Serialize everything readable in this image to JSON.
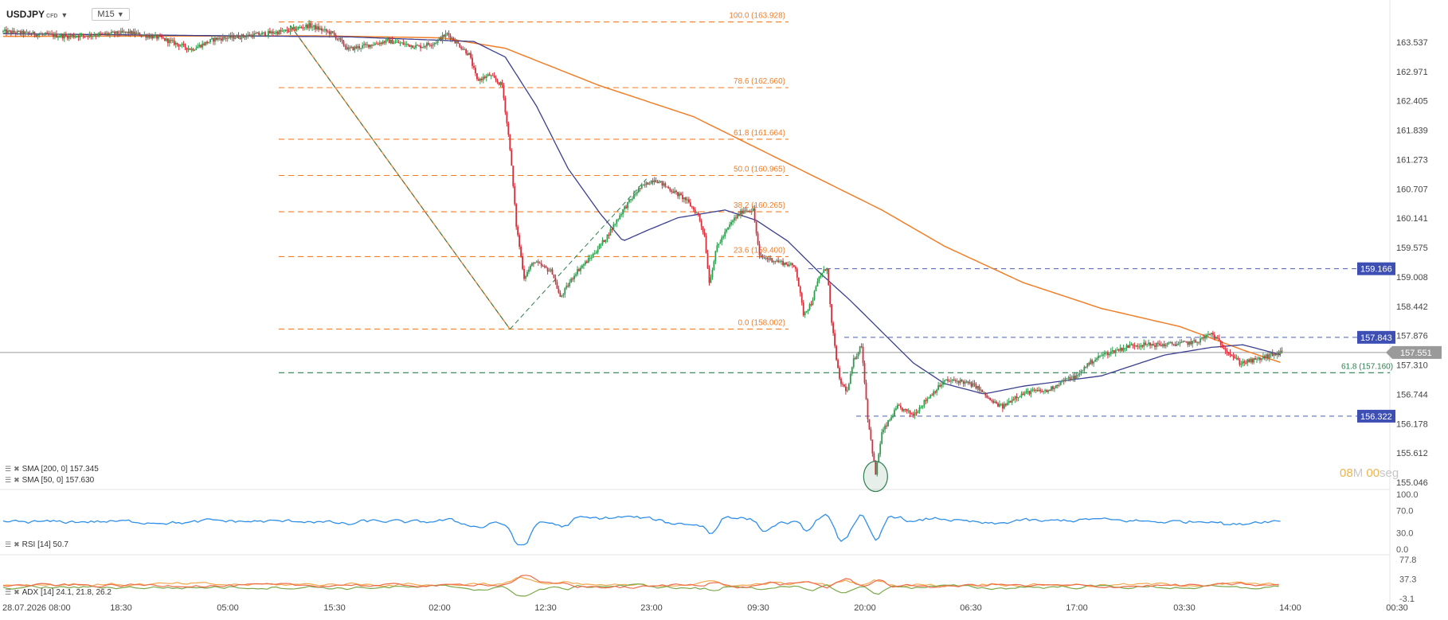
{
  "header": {
    "symbol": "USDJPY",
    "tag": "CFD",
    "timeframe": "M15"
  },
  "indicators": {
    "sma200": "SMA [200, 0] 157.345",
    "sma50": "SMA [50, 0] 157.630",
    "rsi": "RSI [14] 50.7",
    "adx": "ADX [14] 24.1, 21.8, 26.2"
  },
  "timer": {
    "minutes": "08",
    "m_unit": "M",
    "seconds": "00",
    "s_unit": "seg"
  },
  "colors": {
    "bull": "#2e9b4e",
    "bear": "#d62d3a",
    "sma200": "#f07f2a",
    "sma50": "#3b3f8f",
    "fib": "#f07f2a",
    "support": "#4b5fb3",
    "fib2": "#2e7d4f",
    "rsi": "#2f8fe8",
    "adx": "#f3a94e",
    "di_plus": "#7aa84a",
    "di_minus": "#ef6b4b",
    "price_tag": "#9a9a9a",
    "level_tag": "#3e4fb4"
  },
  "chart_data": {
    "type": "candlestick",
    "y_axis": {
      "range": [
        155.046,
        163.928
      ],
      "ticks": [
        "163.537",
        "162.971",
        "162.405",
        "161.839",
        "161.273",
        "160.707",
        "160.141",
        "159.575",
        "159.008",
        "158.442",
        "157.876",
        "157.310",
        "156.744",
        "156.178",
        "155.612",
        "155.046"
      ]
    },
    "x_axis": {
      "ticks": [
        "28.07.2026 08:00",
        "18:30",
        "05:00",
        "15:30",
        "02:00",
        "12:30",
        "23:00",
        "09:30",
        "20:00",
        "06:30",
        "17:00",
        "03:30",
        "14:00",
        "00:30"
      ]
    },
    "price_anchors": [
      [
        0,
        163.74
      ],
      [
        40,
        163.65
      ],
      [
        80,
        163.72
      ],
      [
        100,
        163.62
      ],
      [
        120,
        163.4
      ],
      [
        135,
        163.6
      ],
      [
        155,
        163.66
      ],
      [
        180,
        163.75
      ],
      [
        195,
        163.86
      ],
      [
        210,
        163.7
      ],
      [
        220,
        163.4
      ],
      [
        245,
        163.56
      ],
      [
        265,
        163.45
      ],
      [
        275,
        163.53
      ],
      [
        283,
        163.7
      ],
      [
        297,
        163.3
      ],
      [
        302,
        162.8
      ],
      [
        310,
        162.9
      ],
      [
        318,
        162.7
      ],
      [
        323,
        161.5
      ],
      [
        327,
        160.0
      ],
      [
        332,
        159.0
      ],
      [
        338,
        159.3
      ],
      [
        350,
        159.1
      ],
      [
        355,
        158.6
      ],
      [
        365,
        159.1
      ],
      [
        375,
        159.4
      ],
      [
        385,
        159.8
      ],
      [
        395,
        160.3
      ],
      [
        405,
        160.7
      ],
      [
        415,
        160.9
      ],
      [
        425,
        160.7
      ],
      [
        435,
        160.5
      ],
      [
        443,
        160.2
      ],
      [
        447,
        159.8
      ],
      [
        450,
        158.9
      ],
      [
        455,
        159.6
      ],
      [
        465,
        160.1
      ],
      [
        472,
        160.3
      ],
      [
        478,
        160.3
      ],
      [
        482,
        159.4
      ],
      [
        495,
        159.3
      ],
      [
        505,
        159.2
      ],
      [
        510,
        158.3
      ],
      [
        515,
        158.5
      ],
      [
        520,
        159.0
      ],
      [
        525,
        159.2
      ],
      [
        528,
        158.1
      ],
      [
        533,
        157.0
      ],
      [
        538,
        156.8
      ],
      [
        542,
        157.4
      ],
      [
        547,
        157.7
      ],
      [
        551,
        156.3
      ],
      [
        556,
        155.2
      ],
      [
        560,
        156.0
      ],
      [
        570,
        156.5
      ],
      [
        580,
        156.35
      ],
      [
        590,
        156.7
      ],
      [
        600,
        157.0
      ],
      [
        610,
        157.0
      ],
      [
        620,
        156.9
      ],
      [
        630,
        156.6
      ],
      [
        637,
        156.5
      ],
      [
        645,
        156.7
      ],
      [
        655,
        156.8
      ],
      [
        665,
        156.8
      ],
      [
        675,
        157.0
      ],
      [
        685,
        157.1
      ],
      [
        690,
        157.3
      ],
      [
        700,
        157.5
      ],
      [
        720,
        157.7
      ],
      [
        740,
        157.7
      ],
      [
        760,
        157.75
      ],
      [
        770,
        157.92
      ],
      [
        778,
        157.65
      ],
      [
        788,
        157.35
      ],
      [
        798,
        157.4
      ],
      [
        808,
        157.5
      ],
      [
        815,
        157.55
      ]
    ],
    "sma200_anchors": [
      [
        0,
        163.65
      ],
      [
        200,
        163.66
      ],
      [
        280,
        163.62
      ],
      [
        320,
        163.42
      ],
      [
        380,
        162.7
      ],
      [
        440,
        162.1
      ],
      [
        480,
        161.5
      ],
      [
        520,
        160.9
      ],
      [
        560,
        160.3
      ],
      [
        600,
        159.6
      ],
      [
        650,
        158.9
      ],
      [
        700,
        158.4
      ],
      [
        750,
        158.05
      ],
      [
        790,
        157.6
      ],
      [
        815,
        157.35
      ]
    ],
    "sma50_anchors": [
      [
        0,
        163.7
      ],
      [
        220,
        163.64
      ],
      [
        300,
        163.55
      ],
      [
        320,
        163.25
      ],
      [
        340,
        162.3
      ],
      [
        360,
        161.1
      ],
      [
        380,
        160.25
      ],
      [
        395,
        159.7
      ],
      [
        410,
        159.9
      ],
      [
        430,
        160.15
      ],
      [
        460,
        160.3
      ],
      [
        480,
        160.1
      ],
      [
        500,
        159.7
      ],
      [
        520,
        159.1
      ],
      [
        540,
        158.55
      ],
      [
        560,
        157.95
      ],
      [
        580,
        157.35
      ],
      [
        600,
        156.95
      ],
      [
        625,
        156.75
      ],
      [
        650,
        156.9
      ],
      [
        700,
        157.1
      ],
      [
        740,
        157.5
      ],
      [
        770,
        157.65
      ],
      [
        790,
        157.7
      ],
      [
        815,
        157.5
      ]
    ],
    "fibonacci": [
      {
        "level": "100.0",
        "price": 163.928,
        "label": "100.0 (163.928)"
      },
      {
        "level": "78.6",
        "price": 162.66,
        "label": "78.6 (162.660)"
      },
      {
        "level": "61.8",
        "price": 161.664,
        "label": "61.8 (161.664)"
      },
      {
        "level": "50.0",
        "price": 160.965,
        "label": "50.0 (160.965)"
      },
      {
        "level": "38.2",
        "price": 160.265,
        "label": "38.2 (160.265)"
      },
      {
        "level": "23.6",
        "price": 159.4,
        "label": "23.6 (159.400)"
      },
      {
        "level": "0.0",
        "price": 158.002,
        "label": "0.0 (158.002)"
      }
    ],
    "fib_second": {
      "price": 157.16,
      "label": "61.8 (157.160)"
    },
    "levels": [
      159.166,
      157.843,
      156.322
    ],
    "current_price": 157.551,
    "marked_low": 155.16,
    "rsi": {
      "axis": [
        "100.0",
        "70.0",
        "30.0",
        "0.0"
      ],
      "value": 50.7
    },
    "adx": {
      "axis": [
        "77.8",
        "37.3",
        "-3.1"
      ],
      "adx": 24.1,
      "di_plus": 21.8,
      "di_minus": 26.2
    }
  }
}
